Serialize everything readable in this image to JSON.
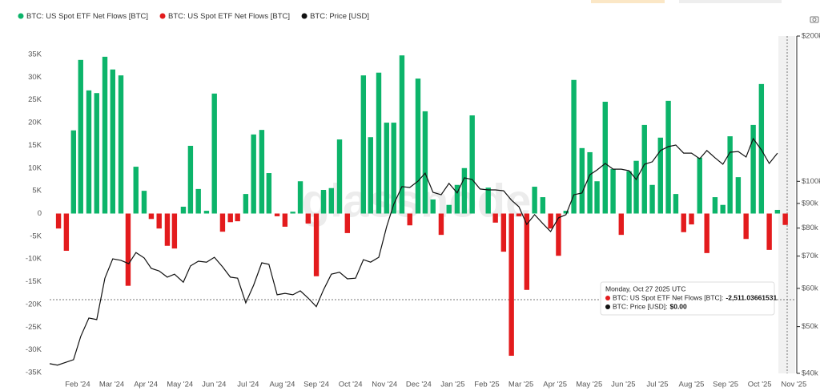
{
  "chart_data": {
    "type": "bar",
    "watermark": "glassnode",
    "legend": [
      {
        "name": "BTC: US Spot ETF Net Flows [BTC]",
        "color": "#0cb46a"
      },
      {
        "name": "BTC: US Spot ETF Net Flows [BTC]",
        "color": "#e31b1d"
      },
      {
        "name": "BTC: Price [USD]",
        "color": "#111111"
      }
    ],
    "xlim": [
      0.18,
      22.04
    ],
    "xticks": [
      {
        "value": 1,
        "label": "Feb '24"
      },
      {
        "value": 2,
        "label": "Mar '24"
      },
      {
        "value": 3,
        "label": "Apr '24"
      },
      {
        "value": 4,
        "label": "May '24"
      },
      {
        "value": 5,
        "label": "Jun '24"
      },
      {
        "value": 6,
        "label": "Jul '24"
      },
      {
        "value": 7,
        "label": "Aug '24"
      },
      {
        "value": 8,
        "label": "Sep '24"
      },
      {
        "value": 9,
        "label": "Oct '24"
      },
      {
        "value": 10,
        "label": "Nov '24"
      },
      {
        "value": 11,
        "label": "Dec '24"
      },
      {
        "value": 12,
        "label": "Jan '25"
      },
      {
        "value": 13,
        "label": "Feb '25"
      },
      {
        "value": 14,
        "label": "Mar '25"
      },
      {
        "value": 15,
        "label": "Apr '25"
      },
      {
        "value": 16,
        "label": "May '25"
      },
      {
        "value": 17,
        "label": "Jun '25"
      },
      {
        "value": 18,
        "label": "Jul '25"
      },
      {
        "value": 19,
        "label": "Aug '25"
      },
      {
        "value": 20,
        "label": "Sep '25"
      },
      {
        "value": 21,
        "label": "Oct '25"
      },
      {
        "value": 22,
        "label": "Nov '25"
      }
    ],
    "ylim": [
      -35000,
      35000
    ],
    "yticks": [
      {
        "value": 35000,
        "label": "35K"
      },
      {
        "value": 30000,
        "label": "30K"
      },
      {
        "value": 25000,
        "label": "25K"
      },
      {
        "value": 20000,
        "label": "20K"
      },
      {
        "value": 15000,
        "label": "15K"
      },
      {
        "value": 10000,
        "label": "10K"
      },
      {
        "value": 5000,
        "label": "5K"
      },
      0,
      {
        "value": -5000,
        "label": "-5K"
      },
      {
        "value": -10000,
        "label": "-10K"
      },
      {
        "value": -15000,
        "label": "-15K"
      },
      {
        "value": -20000,
        "label": "-20K"
      },
      {
        "value": -25000,
        "label": "-25K"
      },
      {
        "value": -30000,
        "label": "-30K"
      },
      {
        "value": -35000,
        "label": "-35K"
      }
    ],
    "y2lim": [
      40000,
      200000
    ],
    "y2log": true,
    "y2ticks": [
      {
        "value": 200000,
        "label": "$200k"
      },
      {
        "value": 100000,
        "label": "$100k"
      },
      {
        "value": 90000,
        "label": "$90k"
      },
      {
        "value": 80000,
        "label": "$80k"
      },
      {
        "value": 70000,
        "label": "$70k"
      },
      {
        "value": 60000,
        "label": "$60k"
      },
      {
        "value": 50000,
        "label": "$50k"
      },
      {
        "value": 40000,
        "label": "$40k"
      }
    ],
    "series": [
      {
        "name": "BTC: US Spot ETF Net Flows [BTC]",
        "x": [
          0.44,
          0.67,
          0.88,
          1.09,
          1.33,
          1.56,
          1.8,
          2.03,
          2.27,
          2.48,
          2.71,
          2.95,
          3.16,
          3.39,
          3.63,
          3.84,
          4.1,
          4.31,
          4.54,
          4.78,
          5.01,
          5.25,
          5.48,
          5.69,
          5.93,
          6.16,
          6.4,
          6.61,
          6.85,
          7.08,
          7.31,
          7.53,
          7.76,
          8.0,
          8.21,
          8.44,
          8.68,
          8.91,
          9.38,
          9.59,
          9.83,
          10.06,
          10.27,
          10.51,
          10.74,
          10.98,
          11.19,
          11.42,
          11.66,
          11.89,
          12.13,
          12.34,
          12.57,
          13.04,
          13.25,
          13.49,
          13.72,
          13.94,
          14.17,
          14.4,
          14.64,
          14.87,
          15.1,
          15.32,
          15.55,
          15.79,
          16.02,
          16.23,
          16.47,
          16.7,
          16.94,
          17.17,
          17.38,
          17.62,
          17.85,
          18.09,
          18.32,
          18.54,
          18.77,
          19.0,
          19.24,
          19.45,
          19.69,
          19.92,
          20.13,
          20.37,
          20.6,
          20.81,
          21.05,
          21.28,
          21.52,
          21.75
        ],
        "values": [
          -3300,
          -8200,
          18300,
          33800,
          27100,
          26500,
          34500,
          31700,
          30400,
          -15900,
          10300,
          5000,
          -1200,
          -3300,
          -7100,
          -7700,
          1500,
          14900,
          5400,
          600,
          26400,
          -4000,
          -1900,
          -1700,
          4300,
          17400,
          18400,
          8900,
          -600,
          -2900,
          400,
          7100,
          -2200,
          -13800,
          5200,
          5600,
          16300,
          -4300,
          30400,
          16800,
          31000,
          20000,
          20000,
          34800,
          -2600,
          29700,
          22500,
          3100,
          -4700,
          1900,
          6300,
          10000,
          21600,
          5700,
          -2000,
          -8400,
          -31300,
          -600,
          -16800,
          5900,
          3600,
          -3300,
          -9300,
          600,
          29400,
          14400,
          13500,
          7100,
          24600,
          9800,
          -4700,
          9300,
          11600,
          19500,
          6300,
          16700,
          24800,
          4300,
          -4100,
          -2400,
          12300,
          -8700,
          3600,
          1900,
          17000,
          8000,
          -5600,
          19500,
          28500,
          -8000,
          800,
          -2511.03661531
        ]
      },
      {
        "name": "BTC: Price [USD]",
        "axis": "y2",
        "color": "#111111",
        "x": [
          0.18,
          0.41,
          0.88,
          1.09,
          1.33,
          1.56,
          1.8,
          2.03,
          2.27,
          2.5,
          2.71,
          2.95,
          3.16,
          3.39,
          3.63,
          3.84,
          4.1,
          4.31,
          4.54,
          4.78,
          5.01,
          5.25,
          5.48,
          5.69,
          5.93,
          6.16,
          6.4,
          6.61,
          6.85,
          7.08,
          7.31,
          7.53,
          7.76,
          8.0,
          8.21,
          8.44,
          8.68,
          8.91,
          9.15,
          9.38,
          9.59,
          9.83,
          10.06,
          10.27,
          10.51,
          10.74,
          10.98,
          11.19,
          11.42,
          11.66,
          11.89,
          12.13,
          12.34,
          12.57,
          12.8,
          13.04,
          13.25,
          13.49,
          13.72,
          13.94,
          14.17,
          14.4,
          14.64,
          14.87,
          15.1,
          15.32,
          15.55,
          15.79,
          16.02,
          16.23,
          16.47,
          16.7,
          16.94,
          17.17,
          17.38,
          17.62,
          17.85,
          18.09,
          18.32,
          18.54,
          18.77,
          19.0,
          19.24,
          19.45,
          19.69,
          19.92,
          20.13,
          20.37,
          20.6,
          20.81,
          21.05,
          21.28,
          21.52
        ],
        "values": [
          41900,
          41600,
          42700,
          47700,
          52100,
          51700,
          63000,
          69100,
          68600,
          67500,
          71200,
          69400,
          66000,
          65200,
          63300,
          64200,
          61800,
          66800,
          68300,
          68000,
          69600,
          66500,
          63300,
          63000,
          56000,
          60900,
          67800,
          67300,
          58200,
          58600,
          58200,
          59300,
          57300,
          55000,
          59600,
          64200,
          64800,
          62800,
          63000,
          68800,
          68000,
          69600,
          80500,
          89600,
          97500,
          97100,
          100100,
          104000,
          94900,
          93800,
          99000,
          94600,
          101700,
          100900,
          96400,
          96000,
          96000,
          95600,
          91400,
          88600,
          81400,
          85300,
          81800,
          78700,
          84000,
          85300,
          93800,
          94600,
          103200,
          105600,
          108900,
          106000,
          106000,
          105200,
          100900,
          108500,
          109800,
          115800,
          118000,
          118900,
          114400,
          114400,
          111400,
          115800,
          111900,
          108500,
          114900,
          115300,
          112300,
          122600,
          116200,
          108900,
          114400
        ]
      }
    ],
    "tooltip": {
      "date": "Monday, Oct 27 2025 UTC",
      "rows": [
        {
          "name": "BTC: US Spot ETF Net Flows [BTC]:",
          "value": "-2,511.03661531"
        },
        {
          "name": "BTC: Price [USD]:",
          "value": "$0.00"
        }
      ]
    }
  }
}
